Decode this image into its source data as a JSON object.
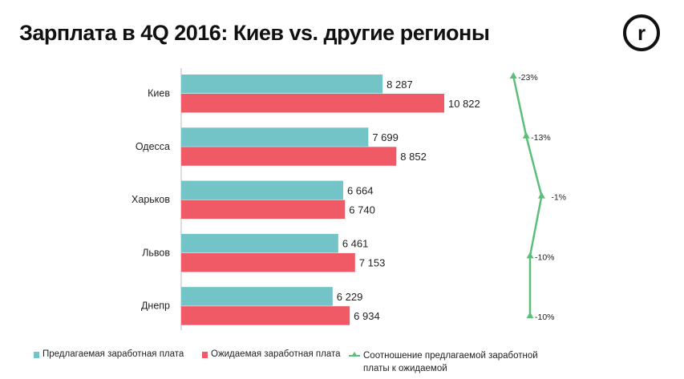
{
  "title": "Зарплата в 4Q 2016: Киев vs. другие регионы",
  "logo_text": "r",
  "colors": {
    "offered": "#73c4c6",
    "expected": "#f05a66",
    "ratio": "#5bbf7a"
  },
  "chart_data": {
    "type": "bar",
    "orientation": "horizontal",
    "title": "Зарплата в 4Q 2016: Киев vs. другие регионы",
    "categories": [
      "Киев",
      "Одесса",
      "Харьков",
      "Львов",
      "Днепр"
    ],
    "series": [
      {
        "name": "Предлагаемая заработная плата",
        "values": [
          8287,
          7699,
          6664,
          6461,
          6229
        ],
        "labels": [
          "8 287",
          "7 699",
          "6 664",
          "6 461",
          "6 229"
        ]
      },
      {
        "name": "Ожидаемая заработная плата",
        "values": [
          10822,
          8852,
          6740,
          7153,
          6934
        ],
        "labels": [
          "10 822",
          "8 852",
          "6 740",
          "7 153",
          "6 934"
        ]
      },
      {
        "name": "Соотношение предлагаемой заработной платы к ожидаемой",
        "type": "line",
        "values": [
          -23,
          -13,
          -1,
          -10,
          -10
        ],
        "labels": [
          "-23%",
          "-13%",
          "-1%",
          "-10%",
          "-10%"
        ]
      }
    ],
    "legend_position": "bottom",
    "grid": false
  },
  "legend": {
    "offered": "Предлагаемая заработная плата",
    "expected": "Ожидаемая заработная плата",
    "ratio_line1": "Соотношение предлагаемой заработной",
    "ratio_line2": "платы к ожидаемой"
  }
}
